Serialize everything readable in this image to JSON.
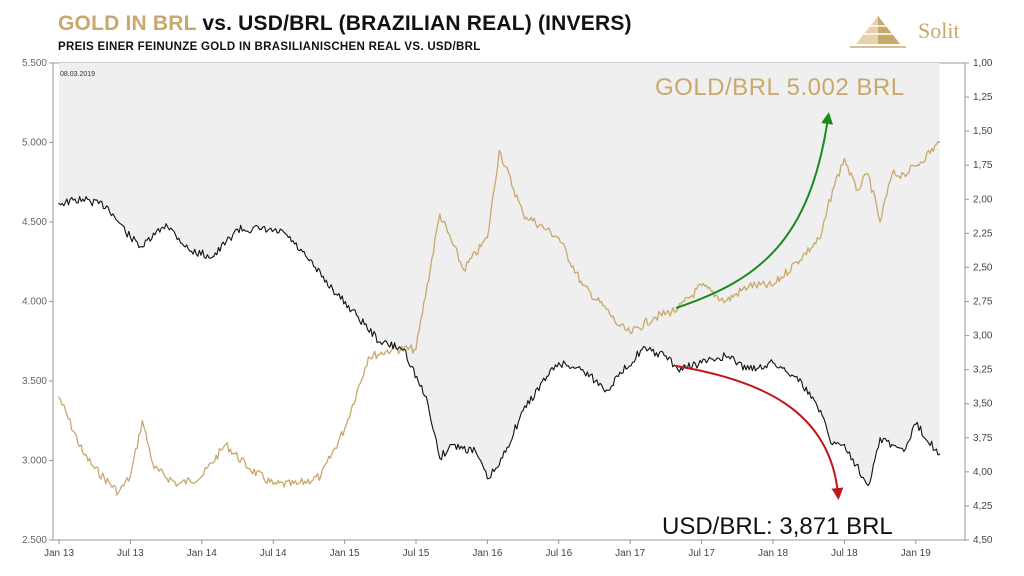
{
  "title": {
    "gold_part": "GOLD IN BRL",
    "rest": "vs. USD/BRL (BRAZILIAN REAL) (INVERS)"
  },
  "subtitle": "PREIS EINER FEINUNZE GOLD IN BRASILIANISCHEN REAL VS. USD/BRL",
  "logo": {
    "text": "Solit",
    "icon": "pyramid-logo-icon"
  },
  "colors": {
    "gold": "#c8a86b",
    "usd": "#111111",
    "area": "#efefef",
    "arrow_up": "#1a8a1a",
    "arrow_down": "#c0171c"
  },
  "chart_data": {
    "type": "line",
    "date_stamp": "08.03.2019",
    "x_ticks": [
      "Jan 13",
      "Jul 13",
      "Jan 14",
      "Jul 14",
      "Jan 15",
      "Jul 15",
      "Jan 16",
      "Jul 16",
      "Jan 17",
      "Jul 17",
      "Jan 18",
      "Jul 18",
      "Jan 19"
    ],
    "left_axis": {
      "ylim": [
        2500,
        5500
      ],
      "ticks": [
        "2.500",
        "3.000",
        "3.500",
        "4.000",
        "4.500",
        "5.000",
        "5.500"
      ]
    },
    "right_axis": {
      "inverted": true,
      "ylim": [
        1.0,
        4.5
      ],
      "ticks": [
        "1,00",
        "1,25",
        "1,50",
        "1,75",
        "2,00",
        "2,25",
        "2,50",
        "2,75",
        "3,00",
        "3,25",
        "3,50",
        "3,75",
        "4,00",
        "4,25",
        "4,50"
      ]
    },
    "annotations": {
      "gold": "GOLD/BRL 5.002 BRL",
      "usd": "USD/BRL: 3,871 BRL"
    },
    "series": [
      {
        "name": "GOLD/BRL",
        "axis": "left",
        "x": [
          "2013-01",
          "2013-03",
          "2013-04",
          "2013-06",
          "2013-07",
          "2013-08",
          "2013-09",
          "2013-11",
          "2014-01",
          "2014-03",
          "2014-05",
          "2014-07",
          "2014-09",
          "2014-11",
          "2015-01",
          "2015-03",
          "2015-05",
          "2015-07",
          "2015-09",
          "2015-11",
          "2016-01",
          "2016-02",
          "2016-04",
          "2016-06",
          "2016-07",
          "2016-09",
          "2016-11",
          "2016-12",
          "2017-01",
          "2017-03",
          "2017-05",
          "2017-07",
          "2017-09",
          "2017-11",
          "2018-01",
          "2018-03",
          "2018-05",
          "2018-06",
          "2018-07",
          "2018-08",
          "2018-09",
          "2018-10",
          "2018-11",
          "2018-12",
          "2019-01",
          "2019-03"
        ],
        "values": [
          3400,
          3050,
          2950,
          2800,
          2900,
          3250,
          2950,
          2850,
          2900,
          3100,
          2950,
          2850,
          2850,
          2900,
          3200,
          3650,
          3700,
          3700,
          4550,
          4200,
          4400,
          4950,
          4550,
          4450,
          4400,
          4100,
          3950,
          3850,
          3800,
          3900,
          3950,
          4100,
          4000,
          4100,
          4100,
          4250,
          4400,
          4700,
          4900,
          4700,
          4800,
          4500,
          4800,
          4800,
          4850,
          5002
        ]
      },
      {
        "name": "USD/BRL",
        "axis": "right",
        "x": [
          "2013-01",
          "2013-03",
          "2013-05",
          "2013-07",
          "2013-08",
          "2013-10",
          "2013-12",
          "2014-02",
          "2014-04",
          "2014-06",
          "2014-08",
          "2014-10",
          "2014-12",
          "2015-02",
          "2015-04",
          "2015-06",
          "2015-08",
          "2015-09",
          "2015-10",
          "2015-12",
          "2016-01",
          "2016-02",
          "2016-04",
          "2016-06",
          "2016-07",
          "2016-09",
          "2016-11",
          "2016-12",
          "2017-02",
          "2017-04",
          "2017-05",
          "2017-07",
          "2017-09",
          "2017-11",
          "2018-01",
          "2018-03",
          "2018-05",
          "2018-06",
          "2018-07",
          "2018-08",
          "2018-09",
          "2018-10",
          "2018-11",
          "2018-12",
          "2019-01",
          "2019-03"
        ],
        "values": [
          2.03,
          2.0,
          2.05,
          2.28,
          2.35,
          2.18,
          2.38,
          2.42,
          2.22,
          2.22,
          2.25,
          2.45,
          2.66,
          2.85,
          3.05,
          3.1,
          3.5,
          3.9,
          3.8,
          3.85,
          4.05,
          3.95,
          3.55,
          3.3,
          3.2,
          3.25,
          3.4,
          3.3,
          3.1,
          3.15,
          3.25,
          3.2,
          3.15,
          3.25,
          3.2,
          3.3,
          3.55,
          3.8,
          3.8,
          3.95,
          4.1,
          3.75,
          3.8,
          3.85,
          3.65,
          3.871
        ]
      }
    ]
  }
}
